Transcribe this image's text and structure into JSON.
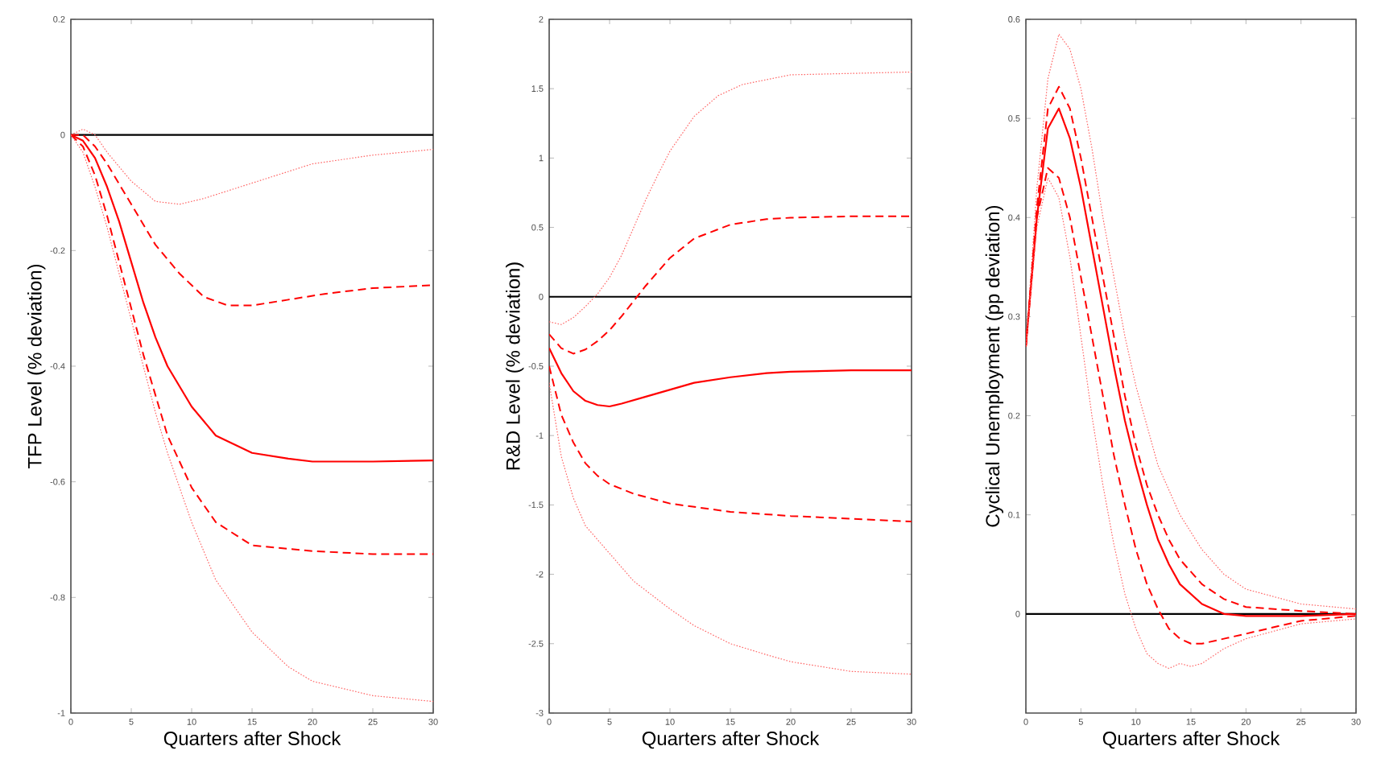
{
  "chart_data": [
    {
      "type": "line",
      "xlabel": "Quarters after Shock",
      "ylabel": "TFP Level (% deviation)",
      "xlim": [
        0,
        30
      ],
      "xticks": [
        0,
        5,
        10,
        15,
        20,
        25,
        30
      ],
      "ylim": [
        -1,
        0.2
      ],
      "yticks": [
        -1,
        -0.8,
        -0.6,
        -0.4,
        -0.2,
        0,
        0.2
      ],
      "ref_lines": [
        {
          "axis": "y",
          "value": 0,
          "color": "#000000",
          "line_style": "solid"
        }
      ],
      "series": [
        {
          "color": "#ff6666",
          "line_style": "dotted",
          "x": [
            0,
            1,
            2,
            3,
            5,
            7,
            9,
            11,
            14,
            17,
            20,
            25,
            30
          ],
          "values": [
            0,
            0.01,
            0.0,
            -0.03,
            -0.08,
            -0.115,
            -0.12,
            -0.11,
            -0.09,
            -0.07,
            -0.05,
            -0.035,
            -0.025
          ]
        },
        {
          "color": "#ff0000",
          "line_style": "dashed",
          "x": [
            0,
            1,
            2,
            3,
            5,
            7,
            9,
            11,
            13,
            15,
            18,
            21,
            25,
            30
          ],
          "values": [
            0,
            0,
            -0.02,
            -0.05,
            -0.12,
            -0.19,
            -0.24,
            -0.28,
            -0.295,
            -0.295,
            -0.285,
            -0.275,
            -0.265,
            -0.26
          ]
        },
        {
          "color": "#ff0000",
          "line_style": "solid",
          "x": [
            0,
            1,
            2,
            3,
            4,
            5,
            6,
            7,
            8,
            10,
            12,
            15,
            18,
            20,
            25,
            30
          ],
          "values": [
            0,
            -0.01,
            -0.04,
            -0.09,
            -0.15,
            -0.22,
            -0.29,
            -0.35,
            -0.4,
            -0.47,
            -0.52,
            -0.55,
            -0.56,
            -0.565,
            -0.565,
            -0.563
          ]
        },
        {
          "color": "#ff0000",
          "line_style": "dashed",
          "x": [
            0,
            1,
            2,
            3,
            4,
            5,
            6,
            7,
            8,
            10,
            12,
            15,
            20,
            25,
            30
          ],
          "values": [
            0,
            -0.02,
            -0.07,
            -0.14,
            -0.22,
            -0.3,
            -0.38,
            -0.45,
            -0.52,
            -0.61,
            -0.67,
            -0.71,
            -0.72,
            -0.725,
            -0.725
          ]
        },
        {
          "color": "#ff6666",
          "line_style": "dotted",
          "x": [
            0,
            1,
            2,
            3,
            4,
            5,
            6,
            7,
            8,
            10,
            12,
            15,
            18,
            20,
            25,
            30
          ],
          "values": [
            0,
            -0.03,
            -0.09,
            -0.16,
            -0.24,
            -0.32,
            -0.4,
            -0.48,
            -0.55,
            -0.67,
            -0.77,
            -0.86,
            -0.92,
            -0.945,
            -0.97,
            -0.98
          ]
        }
      ]
    },
    {
      "type": "line",
      "xlabel": "Quarters after Shock",
      "ylabel": "R&D Level (% deviation)",
      "xlim": [
        0,
        30
      ],
      "xticks": [
        0,
        5,
        10,
        15,
        20,
        25,
        30
      ],
      "ylim": [
        -3,
        2
      ],
      "yticks": [
        -3,
        -2.5,
        -2,
        -1.5,
        -1,
        -0.5,
        0,
        0.5,
        1,
        1.5,
        2
      ],
      "ref_lines": [
        {
          "axis": "y",
          "value": 0,
          "color": "#000000",
          "line_style": "solid"
        }
      ],
      "series": [
        {
          "color": "#ff6666",
          "line_style": "dotted",
          "x": [
            0,
            1,
            2,
            3,
            4,
            5,
            6,
            7,
            8,
            9,
            10,
            12,
            14,
            16,
            20,
            25,
            30
          ],
          "values": [
            -0.18,
            -0.2,
            -0.15,
            -0.07,
            0.02,
            0.14,
            0.3,
            0.5,
            0.7,
            0.88,
            1.05,
            1.3,
            1.45,
            1.53,
            1.6,
            1.61,
            1.62
          ]
        },
        {
          "color": "#ff0000",
          "line_style": "dashed",
          "x": [
            0,
            1,
            2,
            3,
            4,
            5,
            6,
            7,
            8,
            10,
            12,
            15,
            18,
            20,
            25,
            30
          ],
          "values": [
            -0.27,
            -0.37,
            -0.41,
            -0.38,
            -0.32,
            -0.24,
            -0.14,
            -0.03,
            0.08,
            0.28,
            0.42,
            0.52,
            0.56,
            0.57,
            0.58,
            0.58
          ]
        },
        {
          "color": "#ff0000",
          "line_style": "solid",
          "x": [
            0,
            1,
            2,
            3,
            4,
            5,
            6,
            8,
            10,
            12,
            15,
            18,
            20,
            25,
            30
          ],
          "values": [
            -0.37,
            -0.55,
            -0.68,
            -0.75,
            -0.78,
            -0.79,
            -0.77,
            -0.72,
            -0.67,
            -0.62,
            -0.58,
            -0.55,
            -0.54,
            -0.53,
            -0.53
          ]
        },
        {
          "color": "#ff0000",
          "line_style": "dashed",
          "x": [
            0,
            1,
            2,
            3,
            4,
            5,
            7,
            10,
            15,
            20,
            25,
            30
          ],
          "values": [
            -0.5,
            -0.85,
            -1.05,
            -1.2,
            -1.29,
            -1.35,
            -1.42,
            -1.49,
            -1.55,
            -1.58,
            -1.6,
            -1.62
          ]
        },
        {
          "color": "#ff6666",
          "line_style": "dotted",
          "x": [
            0,
            1,
            2,
            3,
            5,
            7,
            10,
            12,
            15,
            18,
            20,
            25,
            30
          ],
          "values": [
            -0.62,
            -1.15,
            -1.45,
            -1.65,
            -1.85,
            -2.05,
            -2.25,
            -2.37,
            -2.5,
            -2.58,
            -2.63,
            -2.7,
            -2.72
          ]
        }
      ]
    },
    {
      "type": "line",
      "xlabel": "Quarters after Shock",
      "ylabel": "Cyclical Unemployment (pp deviation)",
      "xlim": [
        0,
        30
      ],
      "xticks": [
        0,
        5,
        10,
        15,
        20,
        25,
        30
      ],
      "ylim": [
        -0.1,
        0.6
      ],
      "yticks": [
        0,
        0.1,
        0.2,
        0.3,
        0.4,
        0.5,
        0.6
      ],
      "ref_lines": [
        {
          "axis": "y",
          "value": 0,
          "color": "#000000",
          "line_style": "solid"
        }
      ],
      "series": [
        {
          "color": "#ff6666",
          "line_style": "dotted",
          "x": [
            0,
            1,
            2,
            3,
            4,
            5,
            6,
            7,
            8,
            9,
            10,
            12,
            14,
            16,
            18,
            20,
            25,
            30
          ],
          "values": [
            0.27,
            0.43,
            0.54,
            0.585,
            0.57,
            0.53,
            0.47,
            0.4,
            0.34,
            0.28,
            0.23,
            0.15,
            0.1,
            0.065,
            0.04,
            0.025,
            0.01,
            0.005
          ]
        },
        {
          "color": "#ff0000",
          "line_style": "dashed",
          "x": [
            0,
            1,
            2,
            3,
            4,
            5,
            6,
            7,
            8,
            9,
            10,
            11,
            12,
            13,
            14,
            16,
            18,
            20,
            25,
            30
          ],
          "values": [
            0.27,
            0.41,
            0.51,
            0.532,
            0.51,
            0.46,
            0.4,
            0.34,
            0.28,
            0.22,
            0.17,
            0.13,
            0.1,
            0.075,
            0.055,
            0.03,
            0.015,
            0.007,
            0.003,
            0
          ]
        },
        {
          "color": "#ff0000",
          "line_style": "solid",
          "x": [
            0,
            1,
            2,
            3,
            4,
            5,
            6,
            7,
            8,
            9,
            10,
            11,
            12,
            13,
            14,
            16,
            18,
            20,
            25,
            30
          ],
          "values": [
            0.27,
            0.4,
            0.49,
            0.51,
            0.48,
            0.43,
            0.37,
            0.31,
            0.25,
            0.195,
            0.15,
            0.11,
            0.075,
            0.05,
            0.03,
            0.01,
            0,
            -0.002,
            -0.002,
            0
          ]
        },
        {
          "color": "#ff0000",
          "line_style": "dashed",
          "x": [
            0,
            1,
            2,
            3,
            4,
            5,
            6,
            7,
            8,
            9,
            10,
            11,
            12,
            13,
            14,
            15,
            16,
            18,
            20,
            25,
            30
          ],
          "values": [
            0.27,
            0.4,
            0.45,
            0.44,
            0.4,
            0.34,
            0.28,
            0.22,
            0.16,
            0.11,
            0.065,
            0.03,
            0.005,
            -0.015,
            -0.025,
            -0.03,
            -0.03,
            -0.025,
            -0.02,
            -0.007,
            -0.002
          ]
        },
        {
          "color": "#ff6666",
          "line_style": "dotted",
          "x": [
            0,
            1,
            2,
            3,
            4,
            5,
            6,
            7,
            8,
            9,
            10,
            11,
            12,
            13,
            14,
            15,
            16,
            18,
            20,
            25,
            30
          ],
          "values": [
            0.27,
            0.39,
            0.44,
            0.42,
            0.36,
            0.28,
            0.2,
            0.13,
            0.07,
            0.02,
            -0.015,
            -0.04,
            -0.05,
            -0.055,
            -0.05,
            -0.053,
            -0.05,
            -0.035,
            -0.025,
            -0.01,
            -0.005
          ]
        }
      ]
    }
  ]
}
